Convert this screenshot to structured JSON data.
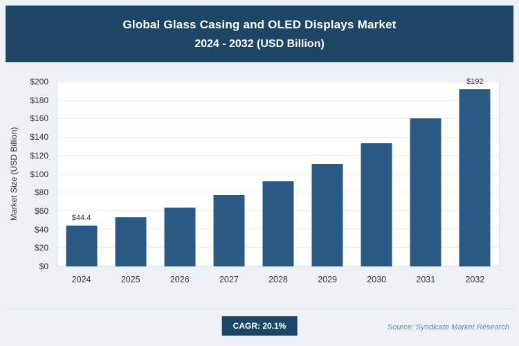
{
  "header": {
    "title": "Global Glass Casing and OLED Displays Market",
    "subtitle": "2024 - 2032 (USD Billion)"
  },
  "chart_data": {
    "type": "bar",
    "title": "Global Glass Casing and OLED Displays Market 2024 - 2032 (USD Billion)",
    "categories": [
      "2024",
      "2025",
      "2026",
      "2027",
      "2028",
      "2029",
      "2030",
      "2031",
      "2032"
    ],
    "values": [
      44.4,
      53.3,
      64,
      77,
      92,
      110.5,
      133,
      160,
      192
    ],
    "bar_labels": [
      "$44.4",
      "",
      "",
      "",
      "",
      "",
      "",
      "",
      "$192"
    ],
    "xlabel": "",
    "ylabel": "Market Size (USD Billion)",
    "ylim": [
      0,
      200
    ],
    "ytick_step": 20,
    "ytick_labels": [
      "$0",
      "$20",
      "$40",
      "$60",
      "$80",
      "$100",
      "$120",
      "$140",
      "$160",
      "$180",
      "$200"
    ],
    "grid": true,
    "legend": false,
    "bar_color": "#2a5a84",
    "header_bg_color": "#1d4566",
    "page_bg_color": "#edf1f6"
  },
  "footer": {
    "cagr_label": "CAGR: 20.1%",
    "source": "Source: Syndicate Market Research"
  }
}
